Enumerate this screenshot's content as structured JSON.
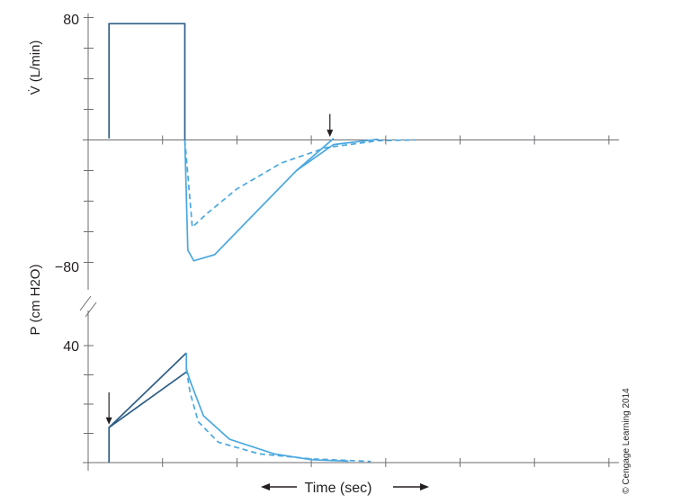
{
  "chart_data": [
    {
      "panel": "flow",
      "type": "line",
      "ylabel": "V̇ (L/min)",
      "ylim": [
        -100,
        80
      ],
      "ytick_labels": [
        "80",
        "−80"
      ],
      "ytick_values": [
        80,
        60,
        40,
        20,
        0,
        -20,
        -40,
        -60,
        -80
      ],
      "xlim": [
        0,
        7.2
      ],
      "xtick_values": [
        0,
        1,
        2,
        3,
        4,
        5,
        6,
        7
      ],
      "grid": false,
      "colors": {
        "waveform": "#2e5e87",
        "curve": "#4aa8e0"
      },
      "series": [
        {
          "style": "solid",
          "x": [
            0.28,
            0.28,
            1.3,
            1.3,
            1.34,
            1.42,
            1.7,
            2.2,
            2.8,
            3.3
          ],
          "y": [
            1,
            76,
            76,
            0,
            -72,
            -79,
            -75,
            -50,
            -20,
            1
          ]
        },
        {
          "style": "dashed",
          "x": [
            1.3,
            1.4,
            1.6,
            2.0,
            2.6,
            3.2,
            3.9,
            4.4
          ],
          "y": [
            0,
            -57,
            -48,
            -32,
            -15,
            -5,
            -0.5,
            0
          ]
        },
        {
          "style": "solid",
          "x": [
            2.8,
            3.3,
            3.9
          ],
          "y": [
            -20,
            -3,
            0.5
          ]
        }
      ],
      "annotations": [
        {
          "type": "arrow-down",
          "x": 3.25,
          "y_from": 17,
          "y_to": 2
        }
      ]
    },
    {
      "panel": "pressure",
      "type": "line",
      "ylabel": "P (cm H2O)",
      "ylim": [
        0,
        45
      ],
      "ytick_labels": [
        "40"
      ],
      "ytick_values": [
        40,
        30,
        20,
        10
      ],
      "xlabel": "Time (sec)",
      "xlim": [
        0,
        7.2
      ],
      "xtick_values": [
        0,
        1,
        2,
        3,
        4,
        5,
        6,
        7
      ],
      "grid": false,
      "colors": {
        "waveform": "#2e5e87",
        "curve": "#4aa8e0"
      },
      "series": [
        {
          "style": "solid",
          "x": [
            0.28,
            0.28,
            1.32,
            1.32,
            1.37,
            1.55,
            1.9,
            2.5,
            3.0,
            3.5
          ],
          "y": [
            0,
            12,
            37.5,
            32,
            28,
            16,
            8,
            3,
            1,
            0.5
          ]
        },
        {
          "style": "solid",
          "x": [
            0.28,
            1.32
          ],
          "y": [
            12,
            31
          ]
        },
        {
          "style": "dashed",
          "x": [
            1.32,
            1.37,
            1.48,
            1.75,
            2.3,
            3.0,
            3.8
          ],
          "y": [
            32,
            24,
            14,
            7,
            3,
            1.3,
            0.4
          ]
        }
      ],
      "annotations": [
        {
          "type": "arrow-down",
          "x": 0.28,
          "y_from": 24,
          "y_to": 13
        }
      ]
    }
  ],
  "credit": "© Cengage Learning 2014"
}
